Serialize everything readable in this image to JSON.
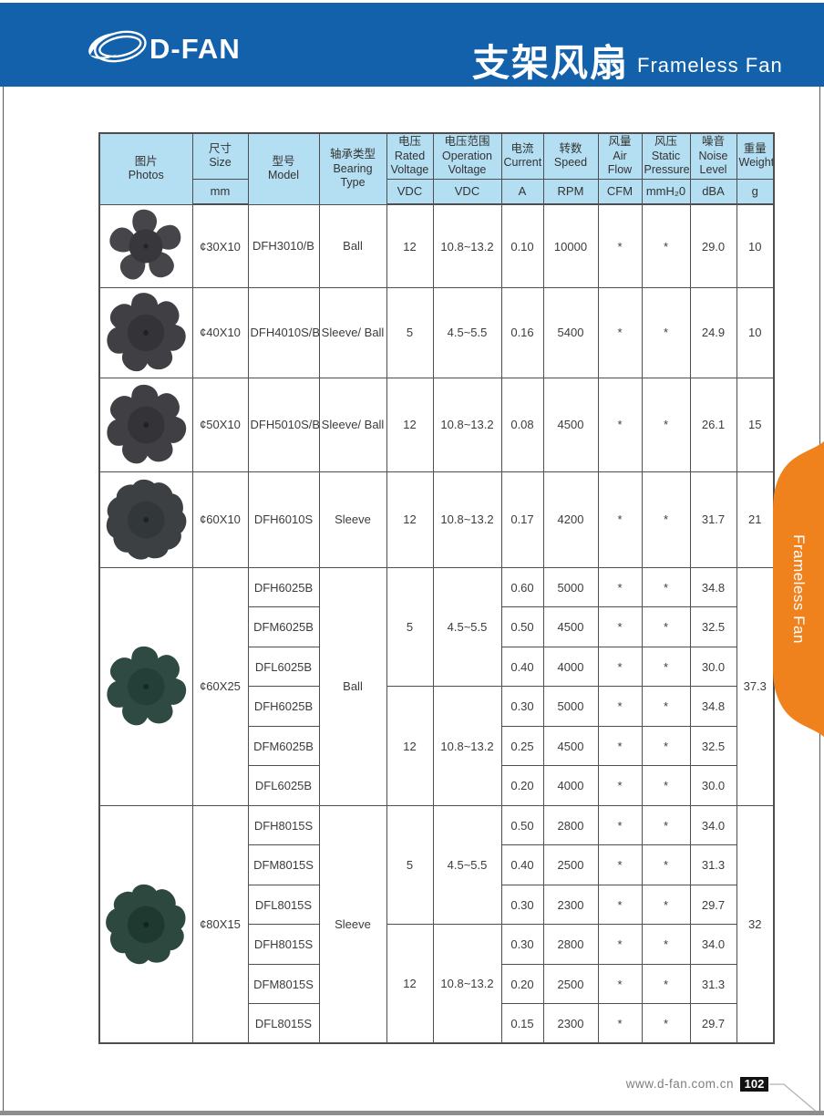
{
  "header": {
    "brand": "D-FAN",
    "logo_icon": "d-fan-swoosh-logo",
    "title_zh": "支架风扇",
    "title_en": "Frameless Fan"
  },
  "side_tab": {
    "label": "Frameless Fan"
  },
  "footer": {
    "website": "www.d-fan.com.cn",
    "page_number": "102"
  },
  "colors": {
    "banner_blue": "#1261aa",
    "table_header_bg": "#b4def1",
    "tab_orange": "#f0821e",
    "grid_line": "#4e4e50",
    "page_badge_bg": "#111111",
    "bottom_strip": "#8d8d8d"
  },
  "photos": [
    {
      "name": "fan-photo-30x10",
      "blades": 5,
      "size": 88,
      "blade_color": "#46464a",
      "hub_color": "#38383c"
    },
    {
      "name": "fan-photo-40x10",
      "blades": 7,
      "size": 96,
      "blade_color": "#404044",
      "hub_color": "#343438"
    },
    {
      "name": "fan-photo-50x10",
      "blades": 7,
      "size": 100,
      "blade_color": "#404044",
      "hub_color": "#343438"
    },
    {
      "name": "fan-photo-60x10",
      "blades": 11,
      "size": 102,
      "blade_color": "#3c4042",
      "hub_color": "#323739"
    },
    {
      "name": "fan-photo-60x25",
      "blades": 7,
      "size": 112,
      "blade_color": "#2e4a42",
      "hub_color": "#233f38"
    },
    {
      "name": "fan-photo-80x15",
      "blades": 9,
      "size": 118,
      "blade_color": "#2c483f",
      "hub_color": "#1f3830"
    }
  ],
  "table": {
    "columns": [
      {
        "zh": "图片",
        "en": "Photos",
        "unit": ""
      },
      {
        "zh": "尺寸",
        "en": "Size",
        "unit": "mm"
      },
      {
        "zh": "型号",
        "en": "Model",
        "unit": ""
      },
      {
        "zh": "轴承类型",
        "en": "Bearing Type",
        "unit": ""
      },
      {
        "zh": "电压",
        "en": "Rated Voltage",
        "unit": "VDC"
      },
      {
        "zh": "电压范围",
        "en": "Operation Voltage",
        "unit": "VDC"
      },
      {
        "zh": "电流",
        "en": "Current",
        "unit": "A"
      },
      {
        "zh": "转数",
        "en": "Speed",
        "unit": "RPM"
      },
      {
        "zh": "风量",
        "en": "Air Flow",
        "unit": "CFM"
      },
      {
        "zh": "风压",
        "en": "Static Pressure",
        "unit": "mmH₂0"
      },
      {
        "zh": "噪音",
        "en": "Noise Level",
        "unit": "dBA"
      },
      {
        "zh": "重量",
        "en": "Weight",
        "unit": "g"
      }
    ],
    "simple_rows": [
      {
        "size": "¢30X10",
        "model": "DFH3010/B",
        "bearing": "Ball",
        "voltage": "12",
        "op_voltage": "10.8~13.2",
        "current": "0.10",
        "speed": "10000",
        "airflow": "*",
        "pressure": "*",
        "noise": "29.0",
        "weight": "10"
      },
      {
        "size": "¢40X10",
        "model": "DFH4010S/B",
        "bearing": "Sleeve/ Ball",
        "voltage": "5",
        "op_voltage": "4.5~5.5",
        "current": "0.16",
        "speed": "5400",
        "airflow": "*",
        "pressure": "*",
        "noise": "24.9",
        "weight": "10"
      },
      {
        "size": "¢50X10",
        "model": "DFH5010S/B",
        "bearing": "Sleeve/ Ball",
        "voltage": "12",
        "op_voltage": "10.8~13.2",
        "current": "0.08",
        "speed": "4500",
        "airflow": "*",
        "pressure": "*",
        "noise": "26.1",
        "weight": "15"
      },
      {
        "size": "¢60X10",
        "model": "DFH6010S",
        "bearing": "Sleeve",
        "voltage": "12",
        "op_voltage": "10.8~13.2",
        "current": "0.17",
        "speed": "4200",
        "airflow": "*",
        "pressure": "*",
        "noise": "31.7",
        "weight": "21"
      }
    ],
    "groups": [
      {
        "size": "¢60X25",
        "bearing": "Ball",
        "weight": "37.3",
        "vb": [
          {
            "voltage": "5",
            "op_voltage": "4.5~5.5",
            "rows": [
              {
                "model": "DFH6025B",
                "current": "0.60",
                "speed": "5000",
                "airflow": "*",
                "pressure": "*",
                "noise": "34.8"
              },
              {
                "model": "DFM6025B",
                "current": "0.50",
                "speed": "4500",
                "airflow": "*",
                "pressure": "*",
                "noise": "32.5"
              },
              {
                "model": "DFL6025B",
                "current": "0.40",
                "speed": "4000",
                "airflow": "*",
                "pressure": "*",
                "noise": "30.0"
              }
            ]
          },
          {
            "voltage": "12",
            "op_voltage": "10.8~13.2",
            "rows": [
              {
                "model": "DFH6025B",
                "current": "0.30",
                "speed": "5000",
                "airflow": "*",
                "pressure": "*",
                "noise": "34.8"
              },
              {
                "model": "DFM6025B",
                "current": "0.25",
                "speed": "4500",
                "airflow": "*",
                "pressure": "*",
                "noise": "32.5"
              },
              {
                "model": "DFL6025B",
                "current": "0.20",
                "speed": "4000",
                "airflow": "*",
                "pressure": "*",
                "noise": "30.0"
              }
            ]
          }
        ]
      },
      {
        "size": "¢80X15",
        "bearing": "Sleeve",
        "weight": "32",
        "vb": [
          {
            "voltage": "5",
            "op_voltage": "4.5~5.5",
            "rows": [
              {
                "model": "DFH8015S",
                "current": "0.50",
                "speed": "2800",
                "airflow": "*",
                "pressure": "*",
                "noise": "34.0"
              },
              {
                "model": "DFM8015S",
                "current": "0.40",
                "speed": "2500",
                "airflow": "*",
                "pressure": "*",
                "noise": "31.3"
              },
              {
                "model": "DFL8015S",
                "current": "0.30",
                "speed": "2300",
                "airflow": "*",
                "pressure": "*",
                "noise": "29.7"
              }
            ]
          },
          {
            "voltage": "12",
            "op_voltage": "10.8~13.2",
            "rows": [
              {
                "model": "DFH8015S",
                "current": "0.30",
                "speed": "2800",
                "airflow": "*",
                "pressure": "*",
                "noise": "34.0"
              },
              {
                "model": "DFM8015S",
                "current": "0.20",
                "speed": "2500",
                "airflow": "*",
                "pressure": "*",
                "noise": "31.3"
              },
              {
                "model": "DFL8015S",
                "current": "0.15",
                "speed": "2300",
                "airflow": "*",
                "pressure": "*",
                "noise": "29.7"
              }
            ]
          }
        ]
      }
    ]
  }
}
